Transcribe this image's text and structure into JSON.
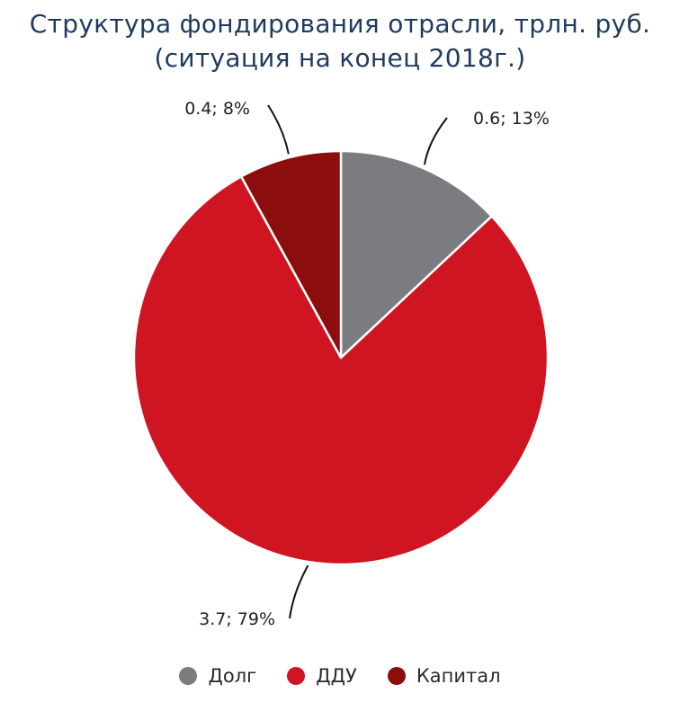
{
  "chart_data": {
    "type": "pie",
    "title_line1": "Структура фондирования отрасли, трлн. руб.",
    "title_line2": "(ситуация на конец 2018г.)",
    "slices": [
      {
        "name": "Долг",
        "value": 0.6,
        "percent": 13,
        "label": "0.6; 13%",
        "color": "#7a7c80"
      },
      {
        "name": "ДДУ",
        "value": 3.7,
        "percent": 79,
        "label": "3.7; 79%",
        "color": "#d01522"
      },
      {
        "name": "Капитал",
        "value": 0.4,
        "percent": 8,
        "label": "0.4; 8%",
        "color": "#8b0d0d"
      }
    ],
    "legend_position": "bottom"
  }
}
